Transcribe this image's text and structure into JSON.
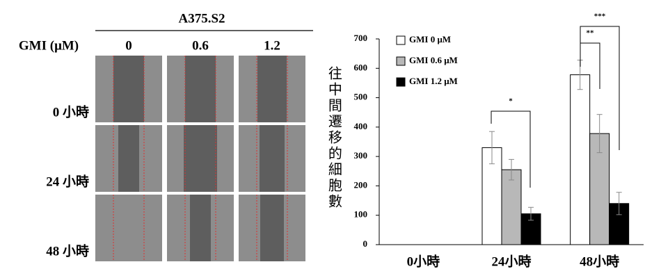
{
  "panel": {
    "title": "A375.S2",
    "concentration_label": "GMI (μM)",
    "concentrations": [
      "0",
      "0.6",
      "1.2"
    ],
    "times": [
      "0 小時",
      "24 小時",
      "48 小時"
    ]
  },
  "chart_data": {
    "type": "bar",
    "y_label": "往中間遷移的細胞數",
    "categories": [
      "0小時",
      "24小時",
      "48小時"
    ],
    "series": [
      {
        "name": "GMI 0 μM",
        "color": "#ffffff",
        "values": [
          0,
          330,
          578
        ],
        "errors": [
          0,
          55,
          50
        ]
      },
      {
        "name": "GMI 0.6 μM",
        "color": "#b8b8b8",
        "values": [
          0,
          255,
          378
        ],
        "errors": [
          0,
          35,
          65
        ]
      },
      {
        "name": "GMI 1.2 μM",
        "color": "#000000",
        "values": [
          0,
          105,
          140
        ],
        "errors": [
          0,
          22,
          38
        ]
      }
    ],
    "annotations": [
      "*",
      "**",
      "***"
    ],
    "ylim": [
      0,
      700
    ],
    "yticks": [
      0,
      100,
      200,
      300,
      400,
      500,
      600,
      700
    ],
    "legend": "upper left"
  }
}
